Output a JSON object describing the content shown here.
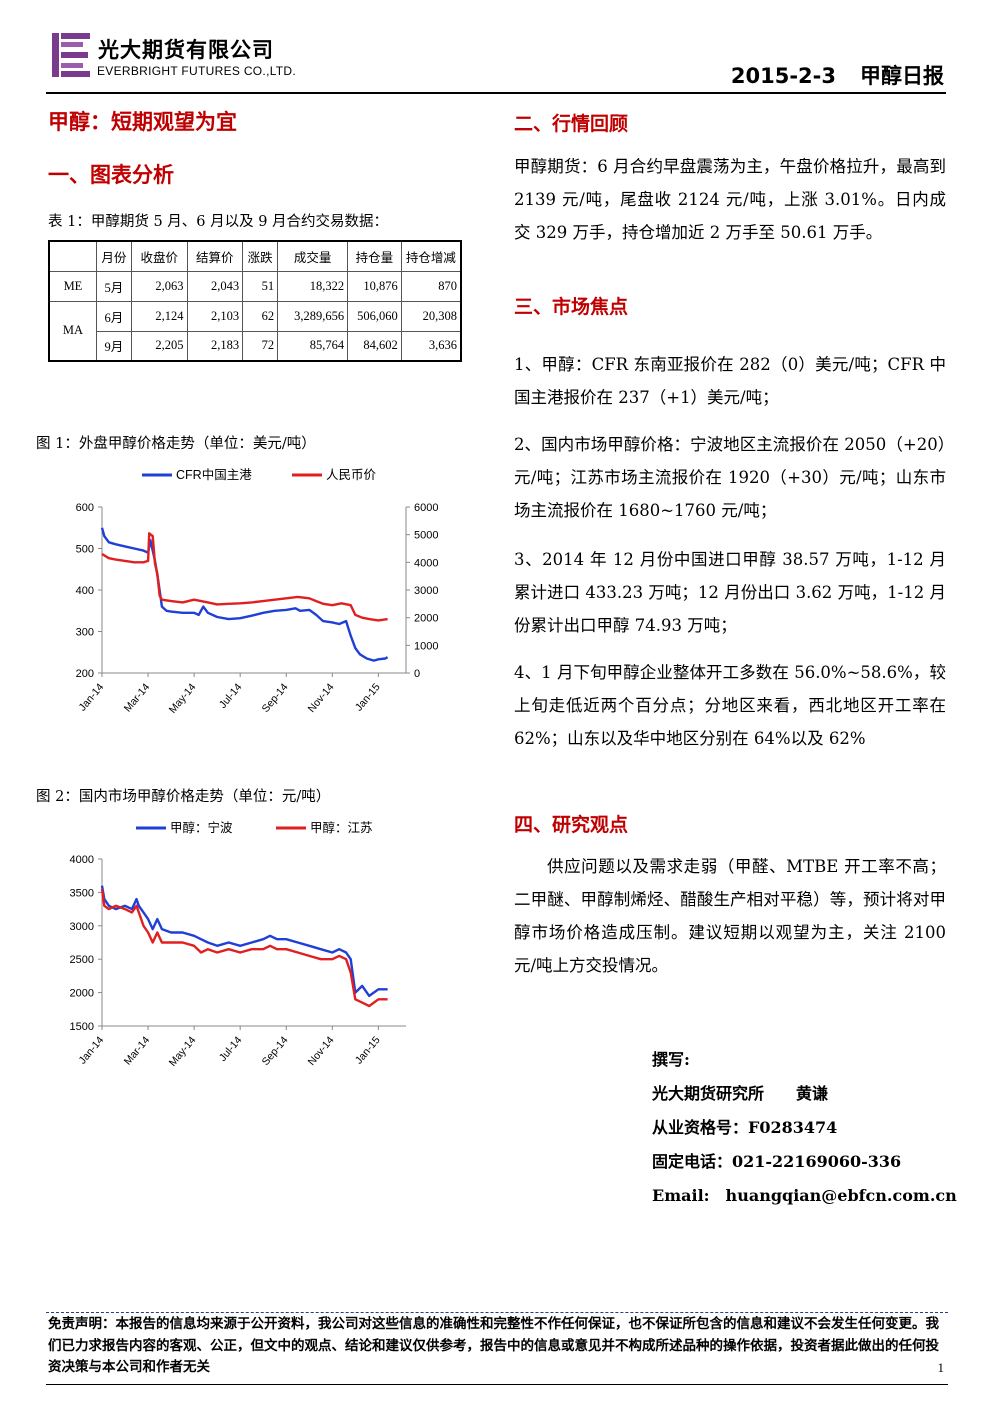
{
  "header": {
    "company_cn": "光大期货有限公司",
    "company_en": "EVERBRIGHT FUTURES CO.,LTD.",
    "date": "2015-2-3",
    "report_name": "甲醇日报",
    "logo_color": "#7a3b8c"
  },
  "left": {
    "main_title": "甲醇：短期观望为宜",
    "section1": "一、图表分析",
    "table_caption": "表 1：甲醇期货 5 月、6 月以及 9 月合约交易数据：",
    "table": {
      "headers": [
        "",
        "月份",
        "收盘价",
        "结算价",
        "涨跌",
        "成交量",
        "持仓量",
        "持仓增减"
      ],
      "rows": [
        {
          "group": "ME",
          "month": "5月",
          "close": "2,063",
          "settle": "2,043",
          "change": "51",
          "volume": "18,322",
          "oi": "10,876",
          "oi_change": "870"
        },
        {
          "group": "MA",
          "month": "6月",
          "close": "2,124",
          "settle": "2,103",
          "change": "62",
          "volume": "3,289,656",
          "oi": "506,060",
          "oi_change": "20,308"
        },
        {
          "group": "",
          "month": "9月",
          "close": "2,205",
          "settle": "2,183",
          "change": "72",
          "volume": "85,764",
          "oi": "84,602",
          "oi_change": "3,636"
        }
      ]
    },
    "fig1_caption": "图 1：外盘甲醇价格走势（单位：美元/吨）",
    "fig2_caption": "图 2：国内市场甲醇价格走势（单位：元/吨）"
  },
  "chart_data": [
    {
      "type": "line",
      "title": "",
      "x_ticks": [
        "Jan-14",
        "Mar-14",
        "May-14",
        "Jul-14",
        "Sep-14",
        "Nov-14",
        "Jan-15"
      ],
      "x_range": [
        0,
        13.2
      ],
      "ylim_left": [
        200,
        600
      ],
      "yticks_left": [
        200,
        300,
        400,
        500,
        600
      ],
      "ylim_right": [
        0,
        6000
      ],
      "yticks_right": [
        0,
        1000,
        2000,
        3000,
        4000,
        5000,
        6000
      ],
      "legend_position": "top",
      "series": [
        {
          "name": "CFR中国主港",
          "color": "#1f3fd6",
          "axis": "left",
          "points": [
            [
              0,
              550
            ],
            [
              0.1,
              530
            ],
            [
              0.3,
              515
            ],
            [
              0.6,
              510
            ],
            [
              1.0,
              505
            ],
            [
              1.4,
              500
            ],
            [
              1.8,
              495
            ],
            [
              2.0,
              490
            ],
            [
              2.1,
              520
            ],
            [
              2.3,
              470
            ],
            [
              2.45,
              420
            ],
            [
              2.6,
              360
            ],
            [
              2.8,
              350
            ],
            [
              3.0,
              348
            ],
            [
              3.5,
              345
            ],
            [
              4.0,
              345
            ],
            [
              4.2,
              340
            ],
            [
              4.4,
              360
            ],
            [
              4.6,
              345
            ],
            [
              5.0,
              335
            ],
            [
              5.5,
              330
            ],
            [
              6.0,
              332
            ],
            [
              6.5,
              338
            ],
            [
              7.0,
              345
            ],
            [
              7.5,
              350
            ],
            [
              8.0,
              352
            ],
            [
              8.4,
              356
            ],
            [
              8.6,
              350
            ],
            [
              9.0,
              352
            ],
            [
              9.3,
              340
            ],
            [
              9.6,
              325
            ],
            [
              10.0,
              322
            ],
            [
              10.3,
              318
            ],
            [
              10.6,
              325
            ],
            [
              10.8,
              290
            ],
            [
              11.0,
              260
            ],
            [
              11.2,
              245
            ],
            [
              11.5,
              235
            ],
            [
              11.8,
              230
            ],
            [
              12.0,
              233
            ],
            [
              12.3,
              235
            ],
            [
              12.4,
              238
            ]
          ]
        },
        {
          "name": "人民币价",
          "color": "#e02020",
          "axis": "right",
          "points": [
            [
              0,
              4300
            ],
            [
              0.3,
              4150
            ],
            [
              0.6,
              4100
            ],
            [
              1.0,
              4050
            ],
            [
              1.4,
              4000
            ],
            [
              1.8,
              4000
            ],
            [
              2.0,
              4050
            ],
            [
              2.05,
              5050
            ],
            [
              2.2,
              4950
            ],
            [
              2.3,
              3950
            ],
            [
              2.4,
              3600
            ],
            [
              2.5,
              2800
            ],
            [
              2.6,
              2650
            ],
            [
              3.0,
              2600
            ],
            [
              3.5,
              2550
            ],
            [
              4.0,
              2650
            ],
            [
              4.3,
              2600
            ],
            [
              4.6,
              2550
            ],
            [
              5.0,
              2480
            ],
            [
              5.5,
              2500
            ],
            [
              6.0,
              2520
            ],
            [
              6.5,
              2550
            ],
            [
              7.0,
              2600
            ],
            [
              7.5,
              2650
            ],
            [
              8.0,
              2700
            ],
            [
              8.5,
              2750
            ],
            [
              9.0,
              2700
            ],
            [
              9.3,
              2600
            ],
            [
              9.6,
              2500
            ],
            [
              10.0,
              2450
            ],
            [
              10.4,
              2520
            ],
            [
              10.8,
              2450
            ],
            [
              11.0,
              2100
            ],
            [
              11.3,
              2000
            ],
            [
              11.6,
              1950
            ],
            [
              12.0,
              1900
            ],
            [
              12.4,
              1950
            ]
          ]
        }
      ]
    },
    {
      "type": "line",
      "title": "",
      "x_ticks": [
        "Jan-14",
        "Mar-14",
        "May-14",
        "Jul-14",
        "Sep-14",
        "Nov-14",
        "Jan-15"
      ],
      "x_range": [
        0,
        13.2
      ],
      "ylim": [
        1500,
        4000
      ],
      "yticks": [
        1500,
        2000,
        2500,
        3000,
        3500,
        4000
      ],
      "legend_position": "top",
      "series": [
        {
          "name": "甲醇：宁波",
          "color": "#1f3fd6",
          "points": [
            [
              0,
              3600
            ],
            [
              0.1,
              3400
            ],
            [
              0.3,
              3300
            ],
            [
              0.6,
              3250
            ],
            [
              1.0,
              3300
            ],
            [
              1.3,
              3250
            ],
            [
              1.5,
              3400
            ],
            [
              1.6,
              3300
            ],
            [
              1.8,
              3200
            ],
            [
              2.0,
              3100
            ],
            [
              2.2,
              2950
            ],
            [
              2.4,
              3100
            ],
            [
              2.6,
              2950
            ],
            [
              3.0,
              2900
            ],
            [
              3.5,
              2900
            ],
            [
              4.0,
              2850
            ],
            [
              4.3,
              2800
            ],
            [
              4.6,
              2750
            ],
            [
              5.0,
              2700
            ],
            [
              5.5,
              2750
            ],
            [
              6.0,
              2700
            ],
            [
              6.5,
              2750
            ],
            [
              7.0,
              2800
            ],
            [
              7.3,
              2850
            ],
            [
              7.6,
              2800
            ],
            [
              8.0,
              2800
            ],
            [
              8.5,
              2750
            ],
            [
              9.0,
              2700
            ],
            [
              9.5,
              2650
            ],
            [
              10.0,
              2600
            ],
            [
              10.3,
              2650
            ],
            [
              10.6,
              2600
            ],
            [
              10.8,
              2500
            ],
            [
              11.0,
              2000
            ],
            [
              11.3,
              2100
            ],
            [
              11.6,
              1950
            ],
            [
              12.0,
              2050
            ],
            [
              12.4,
              2050
            ]
          ]
        },
        {
          "name": "甲醇：江苏",
          "color": "#e02020",
          "points": [
            [
              0,
              3550
            ],
            [
              0.1,
              3300
            ],
            [
              0.3,
              3250
            ],
            [
              0.6,
              3300
            ],
            [
              1.0,
              3250
            ],
            [
              1.3,
              3200
            ],
            [
              1.5,
              3300
            ],
            [
              1.6,
              3200
            ],
            [
              1.8,
              3000
            ],
            [
              2.0,
              2900
            ],
            [
              2.2,
              2750
            ],
            [
              2.4,
              2900
            ],
            [
              2.6,
              2750
            ],
            [
              3.0,
              2750
            ],
            [
              3.5,
              2750
            ],
            [
              4.0,
              2700
            ],
            [
              4.3,
              2600
            ],
            [
              4.6,
              2650
            ],
            [
              5.0,
              2600
            ],
            [
              5.5,
              2650
            ],
            [
              6.0,
              2600
            ],
            [
              6.5,
              2650
            ],
            [
              7.0,
              2650
            ],
            [
              7.3,
              2700
            ],
            [
              7.6,
              2650
            ],
            [
              8.0,
              2650
            ],
            [
              8.5,
              2600
            ],
            [
              9.0,
              2550
            ],
            [
              9.5,
              2500
            ],
            [
              10.0,
              2500
            ],
            [
              10.3,
              2550
            ],
            [
              10.6,
              2500
            ],
            [
              10.8,
              2300
            ],
            [
              11.0,
              1900
            ],
            [
              11.3,
              1850
            ],
            [
              11.6,
              1800
            ],
            [
              12.0,
              1900
            ],
            [
              12.4,
              1900
            ]
          ]
        }
      ]
    }
  ],
  "right": {
    "section2": "二、行情回顾",
    "review": "甲醇期货：6 月合约早盘震荡为主，午盘价格拉升，最高到 2139 元/吨，尾盘收 2124 元/吨，上涨 3.01%。日内成交 329 万手，持仓增加近 2 万手至 50.61 万手。",
    "section3": "三、市场焦点",
    "focus": [
      "1、甲醇：CFR 东南亚报价在 282（0）美元/吨；CFR 中国主港报价在 237（+1）美元/吨；",
      "2、国内市场甲醇价格：宁波地区主流报价在 2050（+20）元/吨；江苏市场主流报价在 1920（+30）元/吨；山东市场主流报价在 1680~1760 元/吨；",
      "3、2014 年 12 月份中国进口甲醇 38.57 万吨，1-12 月累计进口 433.23 万吨；12 月份出口 3.62 万吨，1-12 月份累计出口甲醇 74.93 万吨；",
      "4、1 月下旬甲醇企业整体开工多数在 56.0%~58.6%，较上旬走低近两个百分点；分地区来看，西北地区开工率在 62%；山东以及华中地区分别在 64%以及 62%"
    ],
    "section4": "四、研究观点",
    "view": "供应问题以及需求走弱（甲醛、MTBE 开工率不高；二甲醚、甲醇制烯烃、醋酸生产相对平稳）等，预计将对甲醇市场价格造成压制。建议短期以观望为主，关注 2100 元/吨上方交投情况。",
    "author": {
      "label": "撰写:",
      "org": "光大期货研究所　　黄谦",
      "cert": "从业资格号：F0283474",
      "phone": "固定电话：021-22169060-336",
      "email": "Email:　huangqian@ebfcn.com.cn"
    }
  },
  "footer": {
    "disclaimer": "免责声明：本报告的信息均来源于公开资料，我公司对这些信息的准确性和完整性不作任何保证，也不保证所包含的信息和建议不会发生任何变更。我们已力求报告内容的客观、公正，但文中的观点、结论和建议仅供参考，报告中的信息或意见并不构成所述品种的操作依据，投资者据此做出的任何投资决策与本公司和作者无关",
    "page": "1"
  }
}
